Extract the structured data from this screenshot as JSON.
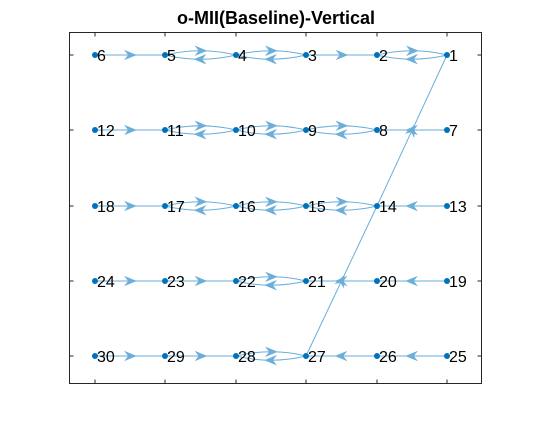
{
  "title": "o-MII(Baseline)-Vertical",
  "colors": {
    "edge": "#6aaed9",
    "node": "#0072bd",
    "axes": "#262626",
    "text": "#000000"
  },
  "nodes": [
    {
      "id": "1",
      "col": 6,
      "row": 1
    },
    {
      "id": "2",
      "col": 5,
      "row": 1
    },
    {
      "id": "3",
      "col": 4,
      "row": 1
    },
    {
      "id": "4",
      "col": 3,
      "row": 1
    },
    {
      "id": "5",
      "col": 2,
      "row": 1
    },
    {
      "id": "6",
      "col": 1,
      "row": 1
    },
    {
      "id": "7",
      "col": 6,
      "row": 2
    },
    {
      "id": "8",
      "col": 5,
      "row": 2
    },
    {
      "id": "9",
      "col": 4,
      "row": 2
    },
    {
      "id": "10",
      "col": 3,
      "row": 2
    },
    {
      "id": "11",
      "col": 2,
      "row": 2
    },
    {
      "id": "12",
      "col": 1,
      "row": 2
    },
    {
      "id": "13",
      "col": 6,
      "row": 3
    },
    {
      "id": "14",
      "col": 5,
      "row": 3
    },
    {
      "id": "15",
      "col": 4,
      "row": 3
    },
    {
      "id": "16",
      "col": 3,
      "row": 3
    },
    {
      "id": "17",
      "col": 2,
      "row": 3
    },
    {
      "id": "18",
      "col": 1,
      "row": 3
    },
    {
      "id": "19",
      "col": 6,
      "row": 4
    },
    {
      "id": "20",
      "col": 5,
      "row": 4
    },
    {
      "id": "21",
      "col": 4,
      "row": 4
    },
    {
      "id": "22",
      "col": 3,
      "row": 4
    },
    {
      "id": "23",
      "col": 2,
      "row": 4
    },
    {
      "id": "24",
      "col": 1,
      "row": 4
    },
    {
      "id": "25",
      "col": 6,
      "row": 5
    },
    {
      "id": "26",
      "col": 5,
      "row": 5
    },
    {
      "id": "27",
      "col": 4,
      "row": 5
    },
    {
      "id": "28",
      "col": 3,
      "row": 5
    },
    {
      "id": "29",
      "col": 2,
      "row": 5
    },
    {
      "id": "30",
      "col": 1,
      "row": 5
    }
  ],
  "edges": [
    {
      "from": "6",
      "to": "5"
    },
    {
      "from": "5",
      "to": "4"
    },
    {
      "from": "4",
      "to": "5"
    },
    {
      "from": "4",
      "to": "3"
    },
    {
      "from": "3",
      "to": "4"
    },
    {
      "from": "3",
      "to": "2"
    },
    {
      "from": "2",
      "to": "1"
    },
    {
      "from": "1",
      "to": "2"
    },
    {
      "from": "12",
      "to": "11"
    },
    {
      "from": "11",
      "to": "10"
    },
    {
      "from": "10",
      "to": "11"
    },
    {
      "from": "10",
      "to": "9"
    },
    {
      "from": "9",
      "to": "10"
    },
    {
      "from": "9",
      "to": "8"
    },
    {
      "from": "8",
      "to": "9"
    },
    {
      "from": "7",
      "to": "8"
    },
    {
      "from": "18",
      "to": "17"
    },
    {
      "from": "17",
      "to": "16"
    },
    {
      "from": "16",
      "to": "17"
    },
    {
      "from": "16",
      "to": "15"
    },
    {
      "from": "15",
      "to": "16"
    },
    {
      "from": "15",
      "to": "14"
    },
    {
      "from": "14",
      "to": "15"
    },
    {
      "from": "13",
      "to": "14"
    },
    {
      "from": "24",
      "to": "23"
    },
    {
      "from": "23",
      "to": "22"
    },
    {
      "from": "22",
      "to": "21"
    },
    {
      "from": "21",
      "to": "22"
    },
    {
      "from": "20",
      "to": "21"
    },
    {
      "from": "19",
      "to": "20"
    },
    {
      "from": "30",
      "to": "29"
    },
    {
      "from": "29",
      "to": "28"
    },
    {
      "from": "28",
      "to": "27"
    },
    {
      "from": "27",
      "to": "28"
    },
    {
      "from": "26",
      "to": "27"
    },
    {
      "from": "25",
      "to": "26"
    },
    {
      "from": "27",
      "to": "14"
    },
    {
      "from": "14",
      "to": "1"
    }
  ]
}
